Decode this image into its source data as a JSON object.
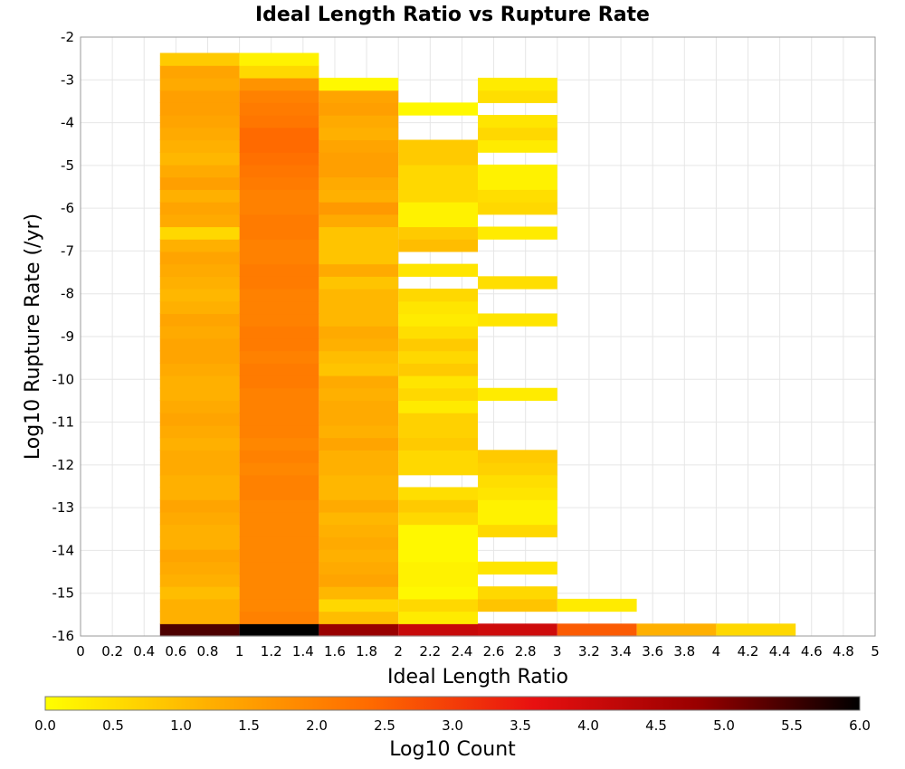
{
  "chart_data": {
    "type": "heatmap",
    "title": "Ideal Length Ratio vs Rupture Rate",
    "xlabel": "Ideal Length Ratio",
    "ylabel": "Log10 Rupture Rate (/yr)",
    "xlim": [
      0,
      5
    ],
    "ylim": [
      -16,
      -2
    ],
    "x_ticks": [
      "0",
      "0.2",
      "0.4",
      "0.6",
      "0.8",
      "1",
      "1.2",
      "1.4",
      "1.6",
      "1.8",
      "2",
      "2.2",
      "2.4",
      "2.6",
      "2.8",
      "3",
      "3.2",
      "3.4",
      "3.6",
      "3.8",
      "4",
      "4.2",
      "4.4",
      "4.6",
      "4.8",
      "5"
    ],
    "y_ticks": [
      "-2",
      "-3",
      "-4",
      "-5",
      "-6",
      "-7",
      "-8",
      "-9",
      "-10",
      "-11",
      "-12",
      "-13",
      "-14",
      "-15",
      "-16"
    ],
    "x_bin_width": 0.5,
    "y_bin_height": 0.29,
    "colorbar": {
      "label": "Log10 Count",
      "range": [
        0.0,
        6.0
      ],
      "ticks": [
        "0.0",
        "0.5",
        "1.0",
        "1.5",
        "2.0",
        "2.5",
        "3.0",
        "3.5",
        "4.0",
        "4.5",
        "5.0",
        "5.5",
        "6.0"
      ],
      "colors": [
        "#ffff00",
        "#ffb000",
        "#ff6a00",
        "#e81010",
        "#990000",
        "#000000"
      ]
    },
    "columns": [
      {
        "x_range": [
          0.5,
          1.0
        ],
        "y_start": -16,
        "values": [
          5.4,
          1.2,
          1.2,
          1.0,
          1.2,
          1.3,
          1.4,
          1.2,
          1.2,
          1.3,
          1.4,
          1.2,
          1.2,
          1.3,
          1.3,
          1.2,
          1.3,
          1.4,
          1.3,
          1.2,
          1.2,
          1.3,
          1.4,
          1.4,
          1.3,
          1.4,
          1.2,
          1.1,
          1.2,
          1.3,
          1.4,
          1.2,
          0.6,
          1.3,
          1.4,
          1.2,
          1.5,
          1.3,
          1.1,
          1.2,
          1.3,
          1.4,
          1.5,
          1.5,
          1.3,
          1.4,
          0.8
        ]
      },
      {
        "x_range": [
          1.0,
          1.5
        ],
        "y_start": -16,
        "values": [
          6.0,
          2.0,
          1.9,
          1.9,
          1.9,
          1.9,
          1.9,
          1.9,
          1.9,
          1.9,
          1.9,
          2.0,
          2.0,
          1.9,
          2.0,
          1.9,
          2.0,
          2.0,
          2.0,
          2.0,
          2.1,
          2.1,
          2.0,
          2.1,
          2.1,
          2.0,
          2.0,
          2.0,
          2.1,
          2.1,
          2.0,
          2.0,
          2.1,
          2.1,
          2.0,
          2.0,
          2.1,
          2.2,
          2.3,
          2.4,
          2.4,
          2.2,
          2.1,
          2.0,
          1.7,
          0.6,
          0.2
        ]
      },
      {
        "x_range": [
          1.5,
          2.0
        ],
        "y_start": -16,
        "values": [
          4.8,
          1.0,
          0.6,
          1.1,
          1.4,
          1.3,
          1.2,
          1.3,
          1.2,
          1.1,
          1.3,
          1.1,
          1.1,
          1.2,
          1.2,
          1.4,
          1.2,
          1.3,
          1.3,
          1.2,
          1.3,
          0.9,
          1.0,
          1.2,
          1.3,
          1.1,
          1.1,
          1.1,
          0.9,
          1.3,
          0.9,
          0.9,
          0.9,
          1.3,
          1.6,
          1.2,
          1.3,
          1.5,
          1.5,
          1.4,
          1.2,
          1.3,
          1.5,
          1.4,
          0.1
        ]
      },
      {
        "x_range": [
          2.0,
          2.5
        ],
        "y_start": -16,
        "values": [
          4.1,
          0.3,
          0.6,
          0.1,
          0.2,
          0.2,
          0.1,
          0.1,
          0.1,
          0.6,
          0.8,
          0.5,
          null,
          0.6,
          0.6,
          0.8,
          0.7,
          0.7,
          0.3,
          0.6,
          0.4,
          0.8,
          0.6,
          0.8,
          0.5,
          0.3,
          0.4,
          0.6,
          null,
          0.4,
          null,
          1.0,
          0.8,
          0.2,
          0.2,
          0.6,
          0.6,
          0.6,
          0.8,
          0.8,
          null,
          null,
          0.1
        ]
      },
      {
        "x_range": [
          2.5,
          3.0
        ],
        "y_start": -16,
        "values": [
          4.0,
          null,
          0.9,
          0.6,
          null,
          0.4,
          null,
          null,
          0.6,
          0.2,
          0.2,
          0.4,
          0.5,
          0.7,
          0.8,
          null,
          null,
          null,
          null,
          0.3,
          null,
          null,
          null,
          null,
          null,
          0.4,
          null,
          null,
          0.5,
          null,
          null,
          null,
          0.3,
          null,
          0.6,
          0.5,
          0.2,
          0.2,
          null,
          0.3,
          0.6,
          0.4,
          null,
          0.5,
          0.3
        ]
      },
      {
        "x_range": [
          3.0,
          3.5
        ],
        "y_start": -16,
        "values": [
          2.6,
          null,
          0.3
        ]
      },
      {
        "x_range": [
          3.5,
          4.0
        ],
        "y_start": -16,
        "values": [
          1.2
        ]
      },
      {
        "x_range": [
          4.0,
          4.5
        ],
        "y_start": -16,
        "values": [
          0.6
        ]
      }
    ]
  }
}
